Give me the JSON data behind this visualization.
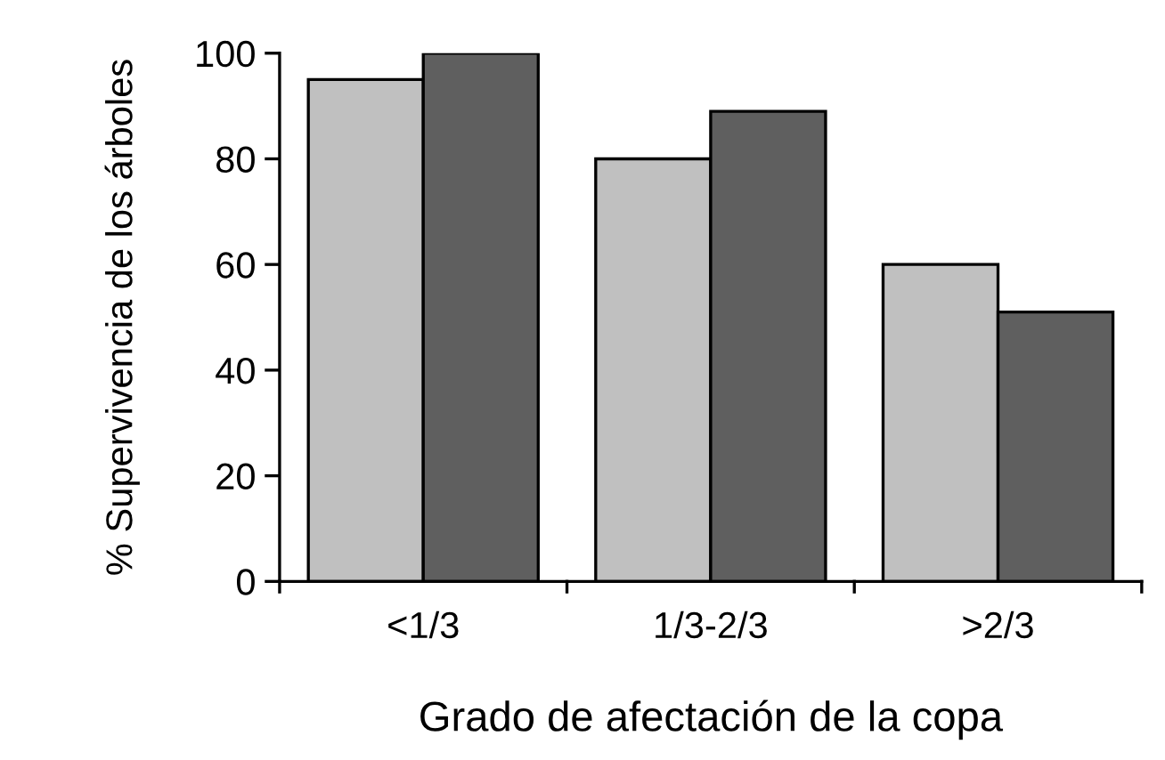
{
  "chart_data": {
    "type": "bar",
    "xlabel": "Grado de afectación de la copa",
    "ylabel": "% Supervivencia de los árboles",
    "categories": [
      "<1/3",
      "1/3-2/3",
      ">2/3"
    ],
    "series": [
      {
        "color": "#c0c0c0",
        "values": [
          95,
          80,
          60
        ]
      },
      {
        "color": "#5f5f5f",
        "values": [
          100,
          89,
          51
        ]
      }
    ],
    "ylim": [
      0,
      100
    ],
    "yticks": [
      0,
      20,
      40,
      60,
      80,
      100
    ],
    "grid": false
  }
}
